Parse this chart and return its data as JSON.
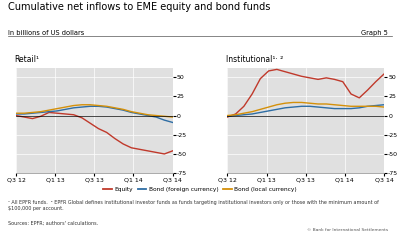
{
  "title": "Cumulative net inflows to EME equity and bond funds",
  "subtitle_left": "In billions of US dollars",
  "subtitle_right": "Graph 5",
  "panel_left_label": "Retail¹",
  "panel_right_label": "Institutional¹· ²",
  "ylim": [
    -75,
    62
  ],
  "yticks": [
    -75,
    -50,
    -25,
    0,
    25,
    50
  ],
  "xtick_labels": [
    "Q3 12",
    "Q1 13",
    "Q3 13",
    "Q1 14",
    "Q3 14"
  ],
  "colors": {
    "equity": "#c0392b",
    "bond_foreign": "#2e6da4",
    "bond_local": "#d4900a"
  },
  "legend_items": [
    {
      "label": "Equity",
      "color": "#c0392b"
    },
    {
      "label": "Bond (foreign currency)",
      "color": "#2e6da4"
    },
    {
      "label": "Bond (local currency)",
      "color": "#d4900a"
    }
  ],
  "footnote1": "¹ All EPFR funds.  ² EPFR Global defines institutional investor funds as funds targeting institutional investors only or those with the minimum amount of $100,000 per account.",
  "footnote2": "Sources: EPFR; authors' calculations.",
  "footnote3": "© Bank for International Settlements",
  "background_color": "#e0e0e0",
  "retail_equity": [
    0,
    -2,
    -4,
    -1,
    4,
    3,
    2,
    1,
    -3,
    -10,
    -17,
    -22,
    -30,
    -37,
    -42,
    -44,
    -46,
    -48,
    -50,
    -46
  ],
  "retail_bond_foreign": [
    2,
    2,
    3,
    4,
    5,
    6,
    8,
    10,
    11,
    12,
    12,
    11,
    9,
    7,
    4,
    2,
    0,
    -2,
    -6,
    -9
  ],
  "retail_bond_local": [
    3,
    3,
    4,
    5,
    7,
    9,
    11,
    13,
    14,
    14,
    13,
    12,
    10,
    8,
    5,
    3,
    1,
    0,
    -1,
    -2
  ],
  "inst_equity": [
    -2,
    2,
    12,
    28,
    48,
    58,
    60,
    57,
    54,
    51,
    49,
    47,
    49,
    47,
    44,
    28,
    23,
    33,
    44,
    54
  ],
  "inst_bond_foreign": [
    -1,
    0,
    1,
    2,
    4,
    6,
    8,
    10,
    11,
    12,
    12,
    11,
    10,
    9,
    9,
    9,
    10,
    12,
    13,
    14
  ],
  "inst_bond_local": [
    0,
    1,
    3,
    5,
    8,
    11,
    14,
    16,
    17,
    17,
    16,
    15,
    15,
    14,
    13,
    12,
    12,
    12,
    12,
    11
  ]
}
